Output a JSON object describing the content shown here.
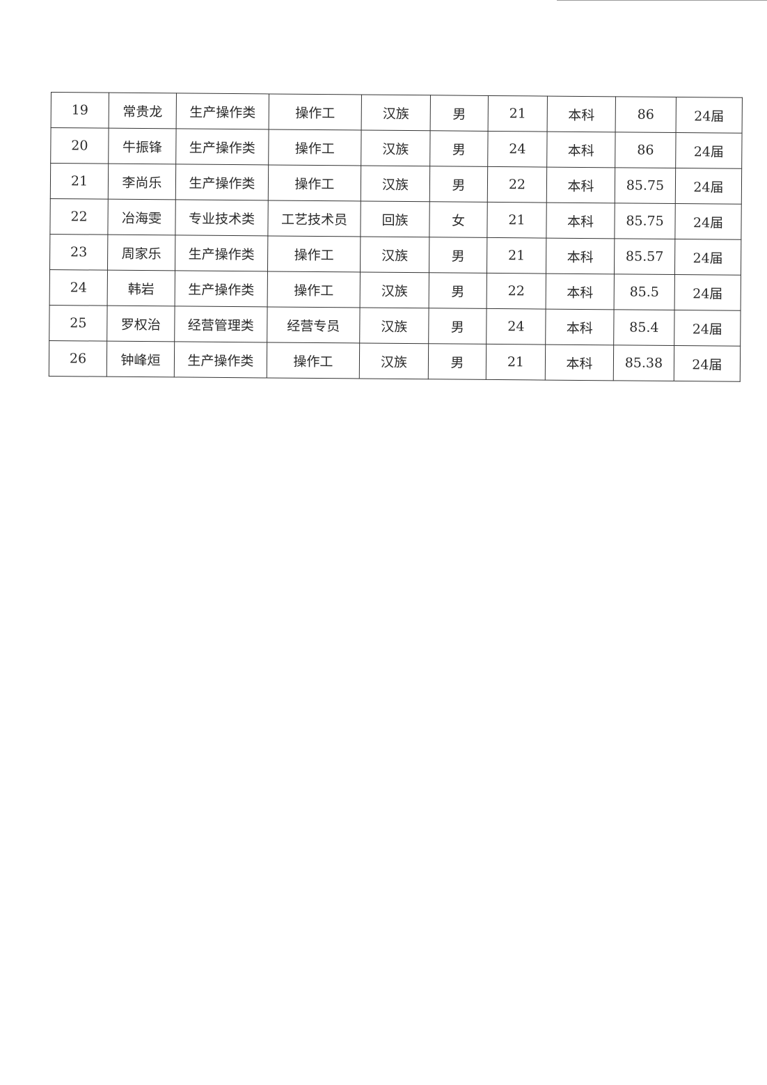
{
  "table": {
    "rows": [
      [
        "19",
        "常贵龙",
        "生产操作类",
        "操作工",
        "汉族",
        "男",
        "21",
        "本科",
        "86",
        "24届"
      ],
      [
        "20",
        "牛振锋",
        "生产操作类",
        "操作工",
        "汉族",
        "男",
        "24",
        "本科",
        "86",
        "24届"
      ],
      [
        "21",
        "李尚乐",
        "生产操作类",
        "操作工",
        "汉族",
        "男",
        "22",
        "本科",
        "85.75",
        "24届"
      ],
      [
        "22",
        "冶海雯",
        "专业技术类",
        "工艺技术员",
        "回族",
        "女",
        "21",
        "本科",
        "85.75",
        "24届"
      ],
      [
        "23",
        "周家乐",
        "生产操作类",
        "操作工",
        "汉族",
        "男",
        "21",
        "本科",
        "85.57",
        "24届"
      ],
      [
        "24",
        "韩岩",
        "生产操作类",
        "操作工",
        "汉族",
        "男",
        "22",
        "本科",
        "85.5",
        "24届"
      ],
      [
        "25",
        "罗权治",
        "经营管理类",
        "经营专员",
        "汉族",
        "男",
        "24",
        "本科",
        "85.4",
        "24届"
      ],
      [
        "26",
        "钟峰烜",
        "生产操作类",
        "操作工",
        "汉族",
        "男",
        "21",
        "本科",
        "85.38",
        "24届"
      ]
    ]
  }
}
